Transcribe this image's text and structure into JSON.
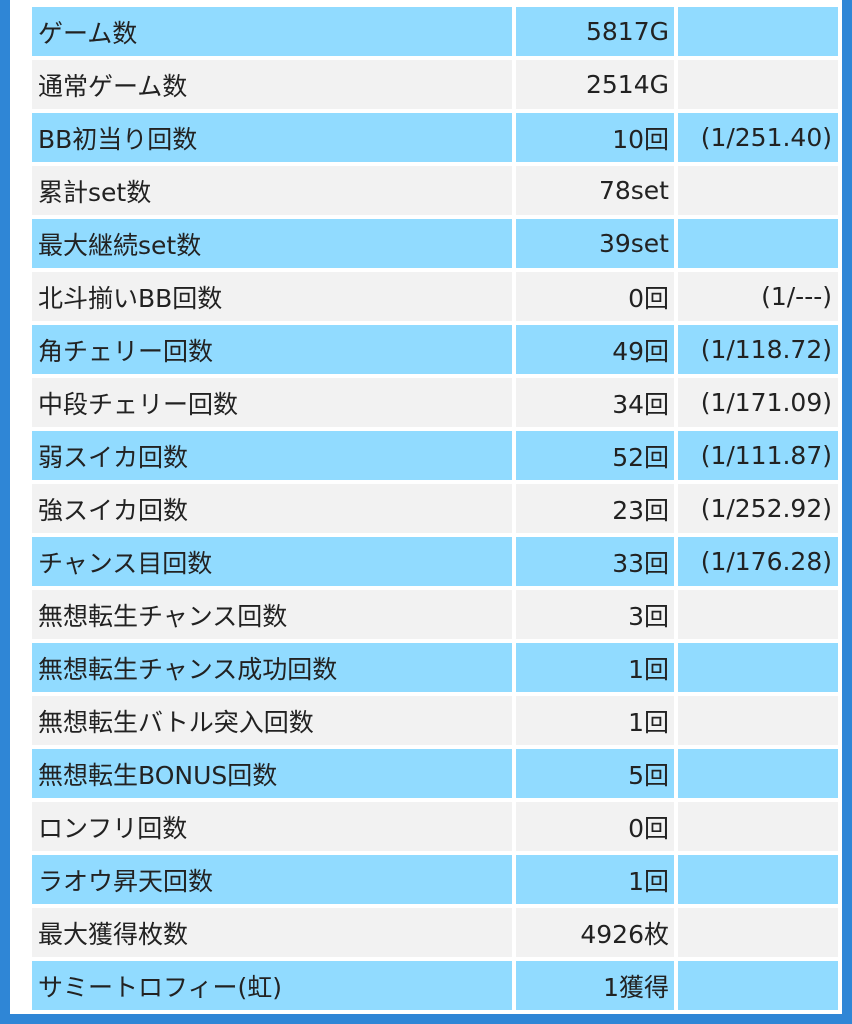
{
  "stats_table": {
    "rows": [
      {
        "label": "ゲーム数",
        "value": "5817G",
        "ratio": ""
      },
      {
        "label": "通常ゲーム数",
        "value": "2514G",
        "ratio": ""
      },
      {
        "label": "BB初当り回数",
        "value": "10回",
        "ratio": "(1/251.40)"
      },
      {
        "label": "累計set数",
        "value": "78set",
        "ratio": ""
      },
      {
        "label": "最大継続set数",
        "value": "39set",
        "ratio": ""
      },
      {
        "label": "北斗揃いBB回数",
        "value": "0回",
        "ratio": "(1/---)"
      },
      {
        "label": "角チェリー回数",
        "value": "49回",
        "ratio": "(1/118.72)"
      },
      {
        "label": "中段チェリー回数",
        "value": "34回",
        "ratio": "(1/171.09)"
      },
      {
        "label": "弱スイカ回数",
        "value": "52回",
        "ratio": "(1/111.87)"
      },
      {
        "label": "強スイカ回数",
        "value": "23回",
        "ratio": "(1/252.92)"
      },
      {
        "label": "チャンス目回数",
        "value": "33回",
        "ratio": "(1/176.28)"
      },
      {
        "label": "無想転生チャンス回数",
        "value": "3回",
        "ratio": ""
      },
      {
        "label": "無想転生チャンス成功回数",
        "value": "1回",
        "ratio": ""
      },
      {
        "label": "無想転生バトル突入回数",
        "value": "1回",
        "ratio": ""
      },
      {
        "label": "無想転生BONUS回数",
        "value": "5回",
        "ratio": ""
      },
      {
        "label": "ロンフリ回数",
        "value": "0回",
        "ratio": ""
      },
      {
        "label": "ラオウ昇天回数",
        "value": "1回",
        "ratio": ""
      },
      {
        "label": "最大獲得枚数",
        "value": "4926枚",
        "ratio": ""
      },
      {
        "label": "サミートロフィー(虹)",
        "value": "1獲得",
        "ratio": ""
      }
    ]
  },
  "colors": {
    "row_blue": "#91dbff",
    "row_gray": "#f2f2f2",
    "frame_border": "#2f86d6",
    "text": "#222222"
  }
}
